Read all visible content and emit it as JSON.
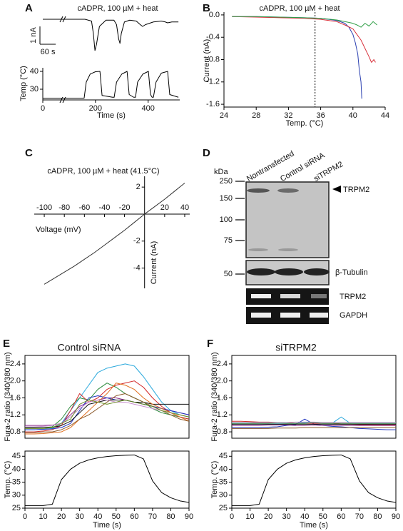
{
  "panels": [
    "A",
    "B",
    "C",
    "D",
    "E",
    "F"
  ],
  "chart_data": [
    {
      "type": "line",
      "title": "cADPR, 100 µM + heat",
      "color": "#000000",
      "xlim": [
        0,
        520
      ],
      "ylim": [
        -2,
        0.4
      ],
      "x": [
        0,
        60,
        120,
        160,
        185,
        192,
        198,
        204,
        215,
        240,
        270,
        280,
        288,
        293,
        298,
        310,
        330,
        355,
        370,
        379,
        390,
        420,
        450,
        465,
        474,
        490,
        515
      ],
      "values": [
        0,
        0,
        0,
        0,
        -0.1,
        -0.8,
        -1.75,
        -1.4,
        -0.4,
        -0.05,
        -0.05,
        -0.3,
        -1.1,
        -1.35,
        -0.8,
        -0.15,
        -0.05,
        -0.1,
        -0.3,
        -0.4,
        -0.3,
        -0.15,
        -0.1,
        -0.15,
        -0.2,
        -0.15,
        -0.15
      ],
      "scale_bar": {
        "y": {
          "value": 1,
          "label": "1 nA"
        },
        "x": {
          "value": 60,
          "label": "60 s"
        }
      }
    },
    {
      "type": "line",
      "xlabel": "Time (s)",
      "ylabel": "Temp (°C)",
      "color": "#000000",
      "xlim": [
        0,
        520
      ],
      "ylim": [
        24,
        42
      ],
      "xticks": [
        0,
        200,
        400
      ],
      "yticks": [
        30,
        40
      ],
      "x": [
        0,
        100,
        150,
        157,
        165,
        180,
        200,
        217,
        225,
        265,
        271,
        280,
        300,
        320,
        328,
        345,
        352,
        360,
        380,
        401,
        409,
        415,
        420,
        430,
        450,
        474,
        482,
        515
      ],
      "values": [
        25,
        25,
        25,
        25,
        34,
        38.5,
        39.8,
        40,
        26.5,
        25.5,
        25.5,
        34,
        38.5,
        40,
        27,
        25.5,
        25.5,
        34,
        38.5,
        40,
        27,
        25.5,
        25.5,
        34,
        39,
        40,
        27,
        25.5
      ]
    },
    {
      "type": "line",
      "title": "cADPR, 100 µM + heat",
      "xlabel": "Temp. (°C)",
      "ylabel": "Current (nA)",
      "xlim": [
        24,
        44
      ],
      "ylim": [
        -1.65,
        0.05
      ],
      "xticks": [
        24,
        28,
        32,
        36,
        40,
        44
      ],
      "yticks": [
        {
          "value": 0,
          "label": "0.0"
        },
        -0.4,
        -0.8,
        -1.2,
        -1.6
      ],
      "vline": 35.3,
      "series": [
        {
          "color": "#2a3fb0",
          "x": [
            25,
            28,
            31,
            34,
            36,
            37,
            38,
            39,
            39.5,
            40,
            40.3,
            40.6,
            40.8,
            41,
            41.1
          ],
          "values": [
            -0.03,
            -0.03,
            -0.04,
            -0.05,
            -0.06,
            -0.08,
            -0.1,
            -0.15,
            -0.22,
            -0.35,
            -0.5,
            -0.7,
            -1.0,
            -1.2,
            -1.5
          ]
        },
        {
          "color": "#d8323c",
          "x": [
            25,
            28,
            31,
            34,
            36,
            38,
            39,
            40,
            40.5,
            41,
            41.5,
            42,
            42.3,
            42.6,
            42.8
          ],
          "values": [
            -0.03,
            -0.04,
            -0.05,
            -0.06,
            -0.08,
            -0.12,
            -0.18,
            -0.25,
            -0.35,
            -0.45,
            -0.6,
            -0.75,
            -0.85,
            -0.8,
            -0.85
          ]
        },
        {
          "color": "#2e9e45",
          "x": [
            25,
            28,
            31,
            34,
            36,
            38,
            39,
            40,
            40.5,
            41,
            41.5,
            42,
            42.5,
            43
          ],
          "values": [
            -0.03,
            -0.03,
            -0.04,
            -0.05,
            -0.06,
            -0.09,
            -0.12,
            -0.15,
            -0.18,
            -0.22,
            -0.15,
            -0.2,
            -0.12,
            -0.18
          ]
        }
      ]
    },
    {
      "type": "line",
      "title": "cADPR, 100 µM + heat (41.5°C)",
      "xlabel": "Voltage (mV)",
      "ylabel": "Current (nA)",
      "color": "#333333",
      "xlim": [
        -110,
        45
      ],
      "ylim": [
        -5.5,
        2.8
      ],
      "xticks": [
        -100,
        -80,
        -60,
        -40,
        -20,
        20,
        40
      ],
      "yticks": [
        -4,
        -2,
        2
      ],
      "x": [
        -100,
        -90,
        -80,
        -70,
        -60,
        -50,
        -40,
        -30,
        -20,
        -10,
        0,
        10,
        20,
        30,
        40
      ],
      "values": [
        -5.2,
        -4.75,
        -4.3,
        -3.85,
        -3.35,
        -2.85,
        -2.3,
        -1.75,
        -1.2,
        -0.6,
        0,
        0.55,
        1.1,
        1.7,
        2.3
      ]
    },
    {
      "type": "line",
      "title": "Control siRNA",
      "ylabel": "Fura-2 ratio (340/380 nm)",
      "xlim": [
        0,
        90
      ],
      "ylim": [
        0.65,
        2.6
      ],
      "yticks": [
        0.8,
        1.2,
        1.6,
        {
          "value": 2,
          "label": "2.0"
        },
        2.4
      ],
      "x": [
        0,
        5,
        10,
        15,
        20,
        25,
        30,
        35,
        40,
        45,
        50,
        55,
        60,
        65,
        70,
        75,
        80,
        85,
        90
      ],
      "series": [
        {
          "color": "#29a8dc",
          "values": [
            0.85,
            0.85,
            0.86,
            0.88,
            1.0,
            1.3,
            1.6,
            1.9,
            2.2,
            2.3,
            2.35,
            2.4,
            2.35,
            2.1,
            1.8,
            1.5,
            1.3,
            1.2,
            1.15
          ]
        },
        {
          "color": "#2a8a3a",
          "values": [
            0.9,
            0.9,
            0.9,
            0.92,
            1.1,
            1.4,
            1.6,
            1.55,
            1.8,
            1.95,
            1.85,
            1.7,
            1.6,
            1.5,
            1.35,
            1.25,
            1.2,
            1.15,
            1.1
          ]
        },
        {
          "color": "#d22a2a",
          "values": [
            0.8,
            0.8,
            0.82,
            0.85,
            0.95,
            1.3,
            1.7,
            1.5,
            1.6,
            1.8,
            1.9,
            1.95,
            2.0,
            1.85,
            1.6,
            1.4,
            1.25,
            1.15,
            1.1
          ]
        },
        {
          "color": "#8b2a8b",
          "values": [
            0.95,
            0.95,
            0.95,
            0.96,
            1.0,
            1.2,
            1.4,
            1.5,
            1.55,
            1.6,
            1.6,
            1.55,
            1.5,
            1.45,
            1.4,
            1.35,
            1.3,
            1.25,
            1.2
          ]
        },
        {
          "color": "#2035c0",
          "values": [
            0.85,
            0.85,
            0.86,
            0.87,
            0.9,
            1.0,
            1.3,
            1.6,
            1.65,
            1.6,
            1.55,
            1.55,
            1.5,
            1.45,
            1.4,
            1.35,
            1.3,
            1.25,
            1.2
          ]
        },
        {
          "color": "#111111",
          "values": [
            0.9,
            0.9,
            0.9,
            0.9,
            0.95,
            1.05,
            1.25,
            1.45,
            1.5,
            1.55,
            1.55,
            1.55,
            1.5,
            1.5,
            1.45,
            1.45,
            1.45,
            1.45,
            1.45
          ]
        },
        {
          "color": "#e07020",
          "values": [
            0.75,
            0.75,
            0.76,
            0.78,
            0.8,
            0.9,
            1.1,
            1.3,
            1.5,
            1.7,
            1.95,
            1.9,
            1.8,
            1.6,
            1.45,
            1.35,
            1.25,
            1.15,
            1.05
          ]
        },
        {
          "color": "#8b5a2b",
          "values": [
            0.78,
            0.78,
            0.8,
            0.8,
            0.85,
            0.95,
            1.1,
            1.2,
            1.35,
            1.5,
            1.65,
            1.7,
            1.6,
            1.5,
            1.4,
            1.3,
            1.2,
            1.1,
            1.05
          ]
        },
        {
          "color": "#c890d0",
          "values": [
            0.92,
            0.92,
            0.93,
            0.95,
            1.0,
            1.15,
            1.35,
            1.5,
            1.55,
            1.55,
            1.5,
            1.5,
            1.45,
            1.4,
            1.35,
            1.3,
            1.25,
            1.2,
            1.15
          ]
        },
        {
          "color": "#6b8e23",
          "values": [
            0.88,
            0.88,
            0.88,
            0.9,
            1.0,
            1.1,
            1.45,
            1.55,
            1.5,
            1.45,
            1.5,
            1.55,
            1.5,
            1.45,
            1.4,
            1.3,
            1.25,
            1.2,
            1.15
          ]
        }
      ]
    },
    {
      "type": "line",
      "xlabel": "Time (s)",
      "ylabel": "Temp. (°C)",
      "color": "#000000",
      "xlim": [
        0,
        90
      ],
      "ylim": [
        25,
        47
      ],
      "xticks": [
        0,
        10,
        20,
        30,
        40,
        50,
        60,
        70,
        80,
        90
      ],
      "yticks": [
        25,
        30,
        35,
        40,
        45
      ],
      "x": [
        0,
        5,
        10,
        15,
        20,
        25,
        30,
        35,
        40,
        45,
        50,
        55,
        60,
        65,
        70,
        75,
        80,
        85,
        90
      ],
      "values": [
        26,
        26,
        26,
        26.5,
        36,
        40,
        42.3,
        43.6,
        44.4,
        44.9,
        45.2,
        45.4,
        45.5,
        44,
        35.5,
        31,
        29,
        27.8,
        27.2
      ]
    },
    {
      "type": "line",
      "title": "siTRPM2",
      "ylabel": "Fura-2 ratio (340/380 nm)",
      "xlim": [
        0,
        90
      ],
      "ylim": [
        0.65,
        2.6
      ],
      "yticks": [
        0.8,
        1.2,
        1.6,
        {
          "value": 2,
          "label": "2.0"
        },
        2.4
      ],
      "x": [
        0,
        5,
        10,
        15,
        20,
        25,
        30,
        35,
        40,
        45,
        50,
        55,
        60,
        65,
        70,
        75,
        80,
        85,
        90
      ],
      "series": [
        {
          "color": "#29a8dc",
          "values": [
            1.0,
            1.0,
            1.0,
            1.0,
            1.0,
            1.0,
            1.0,
            1.0,
            1.02,
            1.0,
            1.0,
            1.0,
            1.15,
            1.0,
            1.0,
            1.0,
            1.0,
            1.0,
            1.0
          ]
        },
        {
          "color": "#2035c0",
          "values": [
            0.9,
            0.9,
            0.9,
            0.9,
            0.91,
            0.92,
            0.95,
            0.97,
            1.1,
            0.98,
            0.95,
            0.93,
            0.92,
            0.9,
            0.88,
            0.87,
            0.86,
            0.85,
            0.85
          ]
        },
        {
          "color": "#d22a2a",
          "values": [
            1.05,
            1.05,
            1.04,
            1.03,
            1.03,
            1.02,
            1.02,
            1.0,
            1.0,
            1.0,
            1.0,
            1.0,
            0.98,
            0.98,
            0.97,
            0.97,
            0.96,
            0.96,
            0.96
          ]
        },
        {
          "color": "#2a8a3a",
          "values": [
            1.0,
            1.0,
            1.0,
            1.0,
            1.0,
            1.01,
            1.0,
            1.0,
            1.0,
            1.02,
            1.0,
            1.0,
            1.0,
            1.0,
            1.0,
            1.0,
            1.0,
            1.0,
            1.0
          ]
        },
        {
          "color": "#8b2a8b",
          "values": [
            0.95,
            0.95,
            0.95,
            0.95,
            0.96,
            0.96,
            0.96,
            0.95,
            0.95,
            0.96,
            0.95,
            0.95,
            0.95,
            0.95,
            0.95,
            0.95,
            0.95,
            0.95,
            0.95
          ]
        },
        {
          "color": "#111111",
          "values": [
            0.98,
            0.98,
            0.98,
            0.98,
            0.98,
            0.98,
            0.98,
            0.98,
            0.98,
            0.98,
            0.98,
            0.98,
            0.98,
            0.98,
            0.98,
            0.98,
            0.98,
            0.98,
            0.98
          ]
        },
        {
          "color": "#c890d0",
          "values": [
            1.02,
            1.02,
            1.02,
            1.02,
            1.02,
            1.02,
            1.02,
            1.03,
            1.03,
            1.03,
            1.02,
            1.02,
            1.02,
            1.02,
            1.02,
            1.02,
            1.02,
            1.02,
            1.02
          ]
        },
        {
          "color": "#8b5a2b",
          "values": [
            0.88,
            0.88,
            0.88,
            0.88,
            0.88,
            0.89,
            0.89,
            0.89,
            0.9,
            0.9,
            0.9,
            0.9,
            0.9,
            0.9,
            0.9,
            0.9,
            0.9,
            0.9,
            0.9
          ]
        }
      ]
    },
    {
      "type": "line",
      "xlabel": "Time (s)",
      "ylabel": "Temp. (°C)",
      "color": "#000000",
      "xlim": [
        0,
        90
      ],
      "ylim": [
        25,
        47
      ],
      "xticks": [
        0,
        10,
        20,
        30,
        40,
        50,
        60,
        70,
        80,
        90
      ],
      "yticks": [
        25,
        30,
        35,
        40,
        45
      ],
      "x": [
        0,
        5,
        10,
        15,
        20,
        25,
        30,
        35,
        40,
        45,
        50,
        55,
        60,
        65,
        70,
        75,
        80,
        85,
        90
      ],
      "values": [
        26,
        26,
        26,
        26.5,
        36,
        40,
        42.3,
        43.6,
        44.4,
        44.9,
        45.2,
        45.4,
        45.5,
        44,
        35.5,
        31,
        29,
        27.8,
        27.2
      ]
    }
  ],
  "blot": {
    "kda": "kDa",
    "markers": [
      250,
      150,
      100,
      75,
      50
    ],
    "lanes": [
      "Nontransfected",
      "Control siRNA",
      "siTRPM2"
    ],
    "labels": [
      "TRPM2",
      "β-Tubulin",
      "TRPM2",
      "GAPDH"
    ]
  }
}
